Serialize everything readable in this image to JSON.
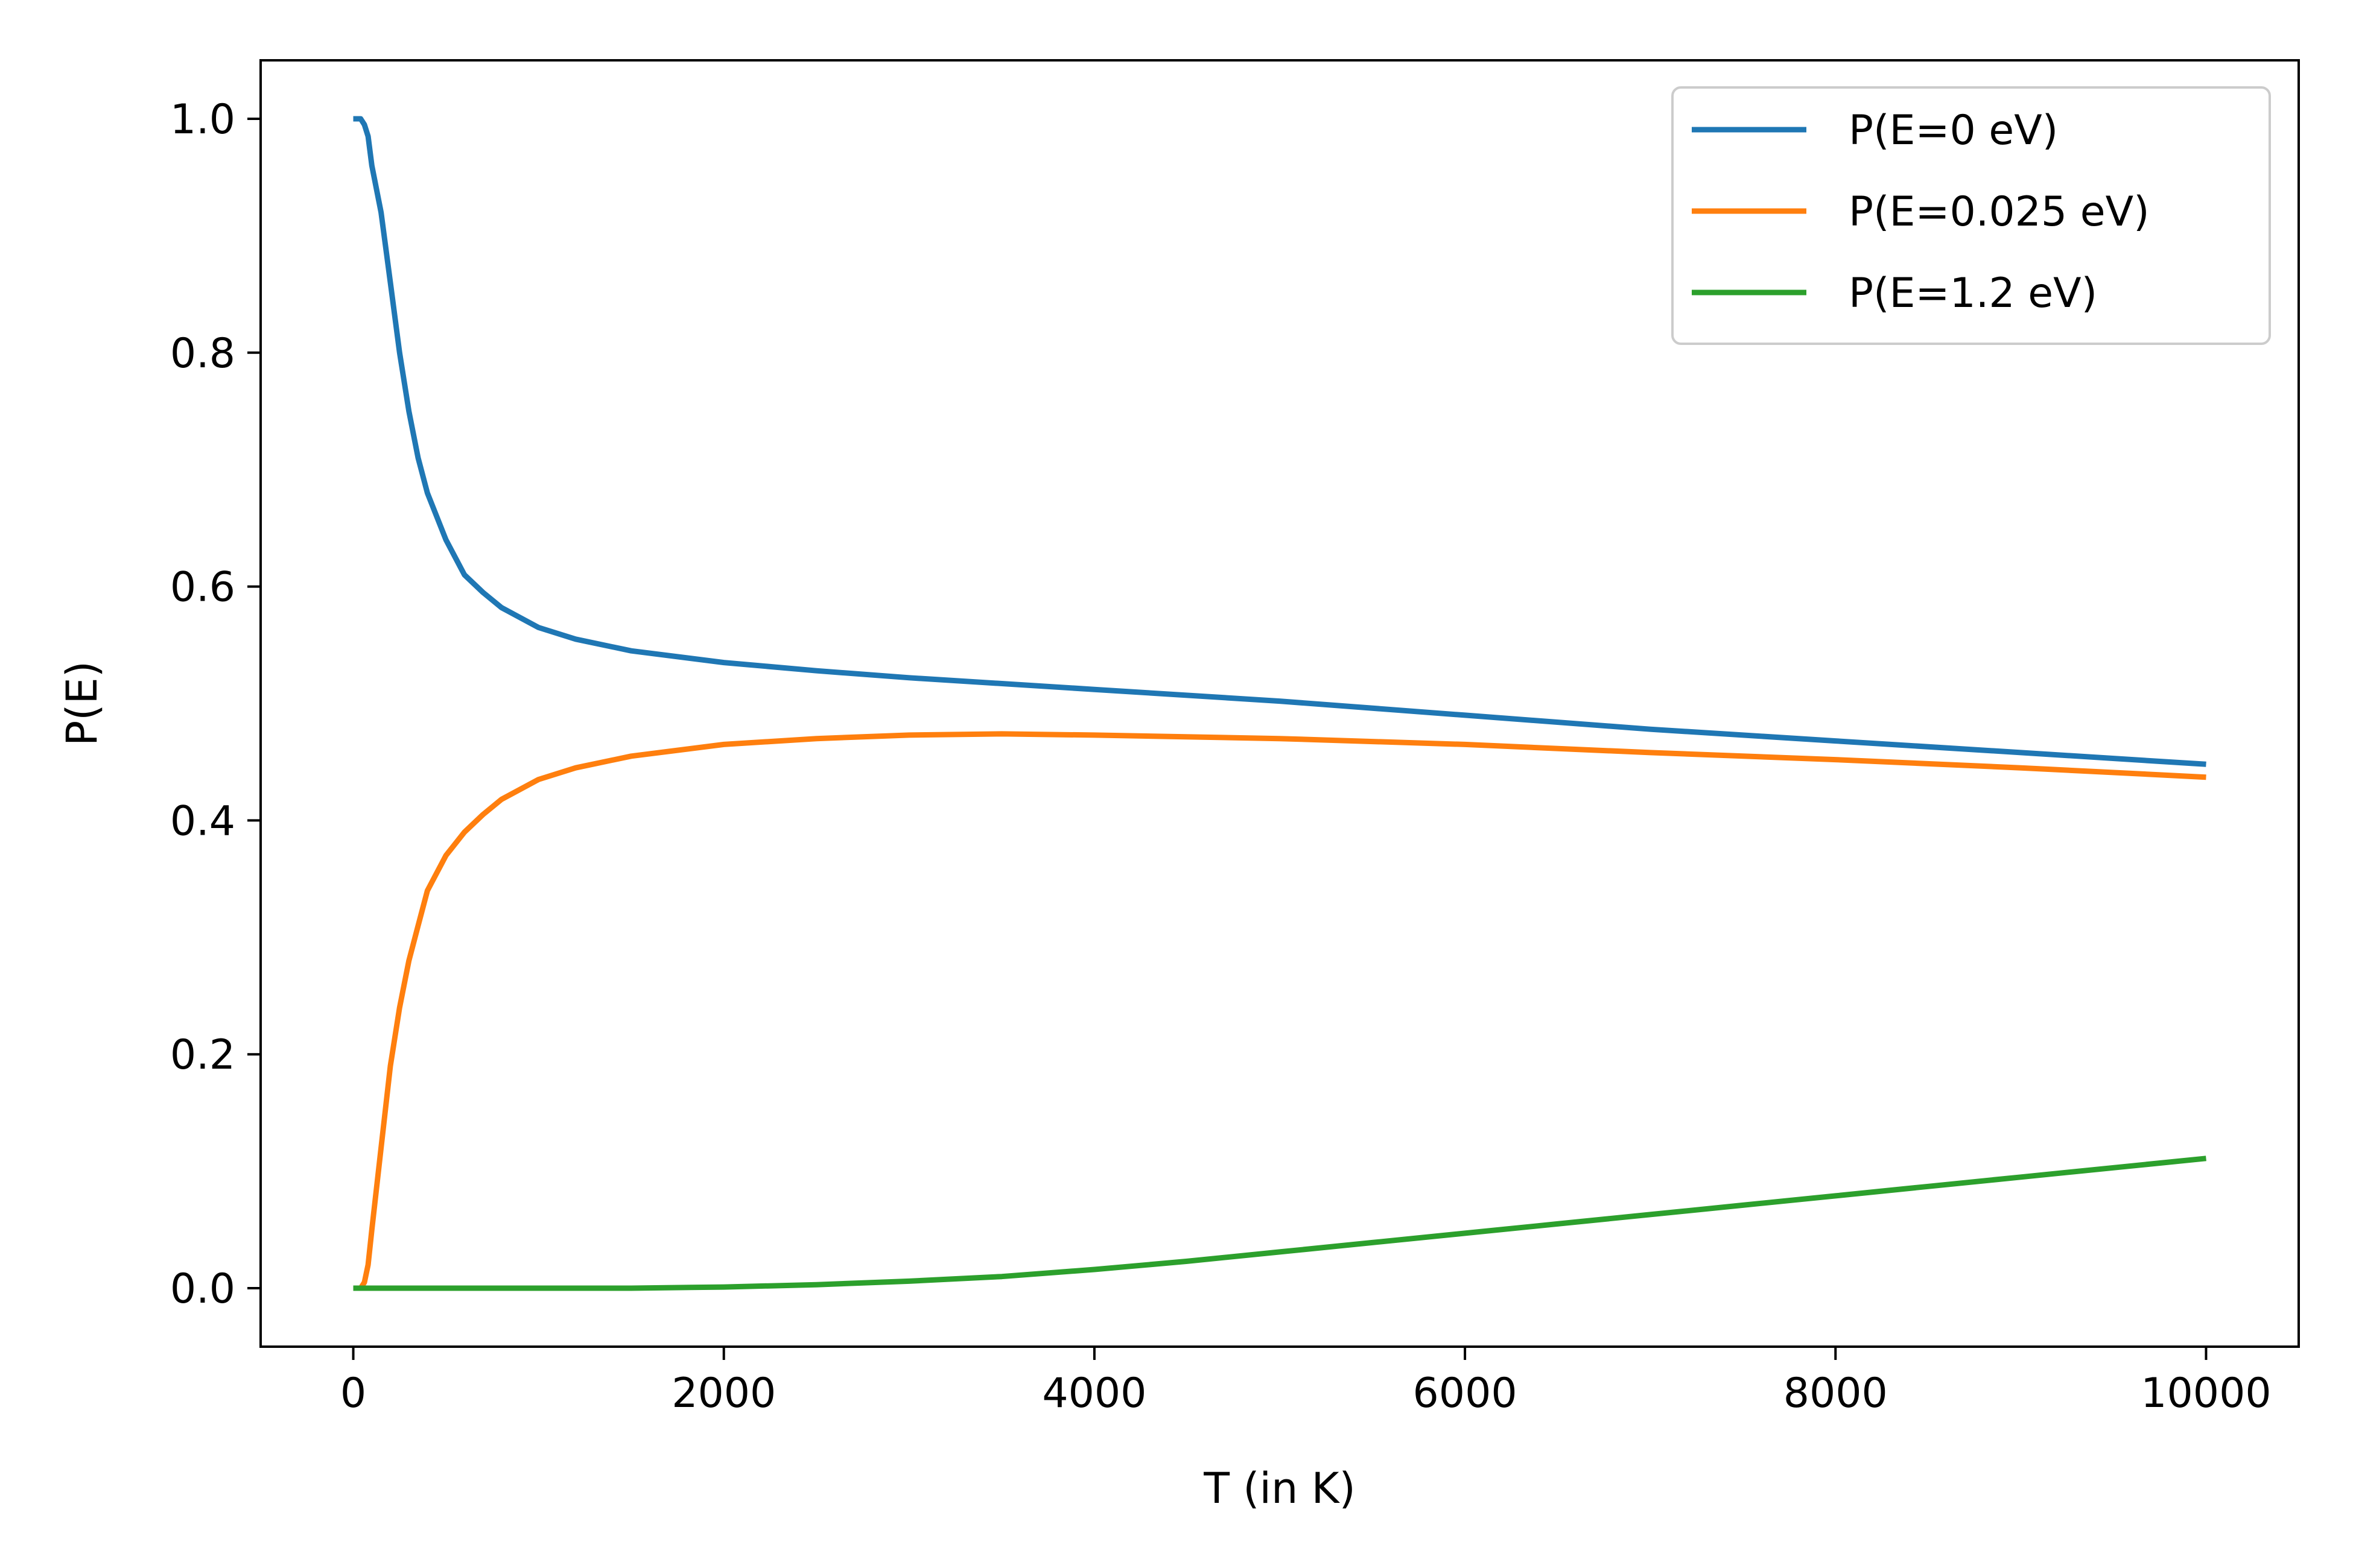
{
  "chart_data": {
    "type": "line",
    "title": "",
    "xlabel": "T (in K)",
    "ylabel": "P(E)",
    "xlim": [
      -500,
      10500
    ],
    "ylim": [
      -0.05,
      1.05
    ],
    "xticks": [
      0,
      2000,
      4000,
      6000,
      8000,
      10000
    ],
    "xtick_labels": [
      "0",
      "2000",
      "4000",
      "6000",
      "8000",
      "10000"
    ],
    "yticks": [
      0.0,
      0.2,
      0.4,
      0.6,
      0.8,
      1.0
    ],
    "ytick_labels": [
      "0.0",
      "0.2",
      "0.4",
      "0.6",
      "0.8",
      "1.0"
    ],
    "grid": false,
    "legend_position": "top-right",
    "series": [
      {
        "name": "P(E=0 eV)",
        "color": "#1f77b4",
        "x": [
          0,
          40,
          60,
          80,
          100,
          150,
          200,
          250,
          300,
          350,
          400,
          500,
          600,
          700,
          800,
          1000,
          1200,
          1500,
          2000,
          2500,
          3000,
          4000,
          5000,
          6000,
          7000,
          8000,
          9000,
          10000
        ],
        "y": [
          1.0,
          1.0,
          0.995,
          0.985,
          0.96,
          0.92,
          0.86,
          0.8,
          0.75,
          0.71,
          0.68,
          0.64,
          0.61,
          0.595,
          0.582,
          0.565,
          0.555,
          0.545,
          0.535,
          0.528,
          0.522,
          0.512,
          0.502,
          0.49,
          0.478,
          0.468,
          0.458,
          0.448
        ]
      },
      {
        "name": "P(E=0.025 eV)",
        "color": "#ff7f0e",
        "x": [
          0,
          40,
          60,
          80,
          100,
          150,
          200,
          250,
          300,
          350,
          400,
          500,
          600,
          700,
          800,
          1000,
          1200,
          1500,
          2000,
          2500,
          3000,
          3500,
          4000,
          5000,
          6000,
          7000,
          8000,
          9000,
          10000
        ],
        "y": [
          0.0,
          0.0,
          0.005,
          0.02,
          0.05,
          0.12,
          0.19,
          0.24,
          0.28,
          0.31,
          0.34,
          0.37,
          0.39,
          0.405,
          0.418,
          0.435,
          0.445,
          0.455,
          0.465,
          0.47,
          0.473,
          0.474,
          0.473,
          0.47,
          0.465,
          0.458,
          0.452,
          0.445,
          0.437
        ]
      },
      {
        "name": "P(E=1.2 eV)",
        "color": "#2ca02c",
        "x": [
          0,
          500,
          1000,
          1500,
          2000,
          2500,
          3000,
          3500,
          4000,
          4500,
          5000,
          5500,
          6000,
          6500,
          7000,
          7500,
          8000,
          8500,
          9000,
          9500,
          10000
        ],
        "y": [
          0.0,
          0.0,
          0.0,
          0.0,
          0.001,
          0.003,
          0.006,
          0.01,
          0.016,
          0.023,
          0.031,
          0.039,
          0.047,
          0.055,
          0.063,
          0.071,
          0.079,
          0.087,
          0.095,
          0.103,
          0.111
        ]
      }
    ]
  }
}
